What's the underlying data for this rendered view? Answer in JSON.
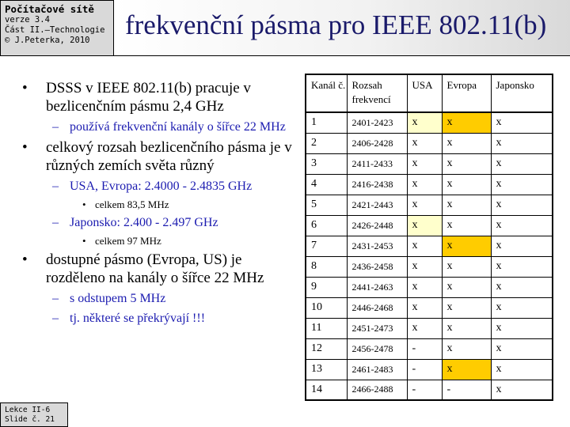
{
  "header": {
    "course": "Počítačové sítě",
    "version": "verze 3.4",
    "part": "Část II.–Technologie",
    "author": "© J.Peterka, 2010"
  },
  "slide_title": "frekvenční pásma pro IEEE 802.11(b)",
  "bullets": {
    "b1": "DSSS v IEEE 802.11(b) pracuje v bezlicenčním pásmu 2,4 GHz",
    "b1_s1": "používá frekvenční kanály o šířce 22 MHz",
    "b2": "celkový rozsah bezlicenčního pásma je v různých zemích světa různý",
    "b2_s1": "USA, Evropa: 2.4000 - 2.4835 GHz",
    "b2_s1_s1": "celkem 83,5 MHz",
    "b2_s2": "Japonsko: 2.400 - 2.497 GHz",
    "b2_s2_s1": "celkem 97 MHz",
    "b3": "dostupné pásmo (Evropa, US) je rozděleno na kanály o šířce 22 MHz",
    "b3_s1": "s odstupem 5 MHz",
    "b3_s2": "tj. některé se překrývají !!!"
  },
  "table": {
    "headers": {
      "channel": "Kanál č.",
      "range": "Rozsah frekvencí",
      "usa": "USA",
      "europe": "Evropa",
      "japan": "Japonsko"
    },
    "rows": [
      {
        "ch": "1",
        "range": "2401-2423",
        "usa": "x",
        "eu": "x",
        "jp": "x"
      },
      {
        "ch": "2",
        "range": "2406-2428",
        "usa": "x",
        "eu": "x",
        "jp": "x"
      },
      {
        "ch": "3",
        "range": "2411-2433",
        "usa": "x",
        "eu": "x",
        "jp": "x"
      },
      {
        "ch": "4",
        "range": "2416-2438",
        "usa": "x",
        "eu": "x",
        "jp": "x"
      },
      {
        "ch": "5",
        "range": "2421-2443",
        "usa": "x",
        "eu": "x",
        "jp": "x"
      },
      {
        "ch": "6",
        "range": "2426-2448",
        "usa": "x",
        "eu": "x",
        "jp": "x"
      },
      {
        "ch": "7",
        "range": "2431-2453",
        "usa": "x",
        "eu": "x",
        "jp": "x"
      },
      {
        "ch": "8",
        "range": "2436-2458",
        "usa": "x",
        "eu": "x",
        "jp": "x"
      },
      {
        "ch": "9",
        "range": "2441-2463",
        "usa": "x",
        "eu": "x",
        "jp": "x"
      },
      {
        "ch": "10",
        "range": "2446-2468",
        "usa": "x",
        "eu": "x",
        "jp": "x"
      },
      {
        "ch": "11",
        "range": "2451-2473",
        "usa": "x",
        "eu": "x",
        "jp": "x"
      },
      {
        "ch": "12",
        "range": "2456-2478",
        "usa": "-",
        "eu": "x",
        "jp": "x"
      },
      {
        "ch": "13",
        "range": "2461-2483",
        "usa": "-",
        "eu": "x",
        "jp": "x"
      },
      {
        "ch": "14",
        "range": "2466-2488",
        "usa": "-",
        "eu": "-",
        "jp": "x"
      }
    ],
    "highlight_colors": {
      "strong": "#ffcc00",
      "light": "#ffffcc"
    }
  },
  "footer": {
    "lesson": "Lekce II-6",
    "slide": "Slide č. 21"
  }
}
